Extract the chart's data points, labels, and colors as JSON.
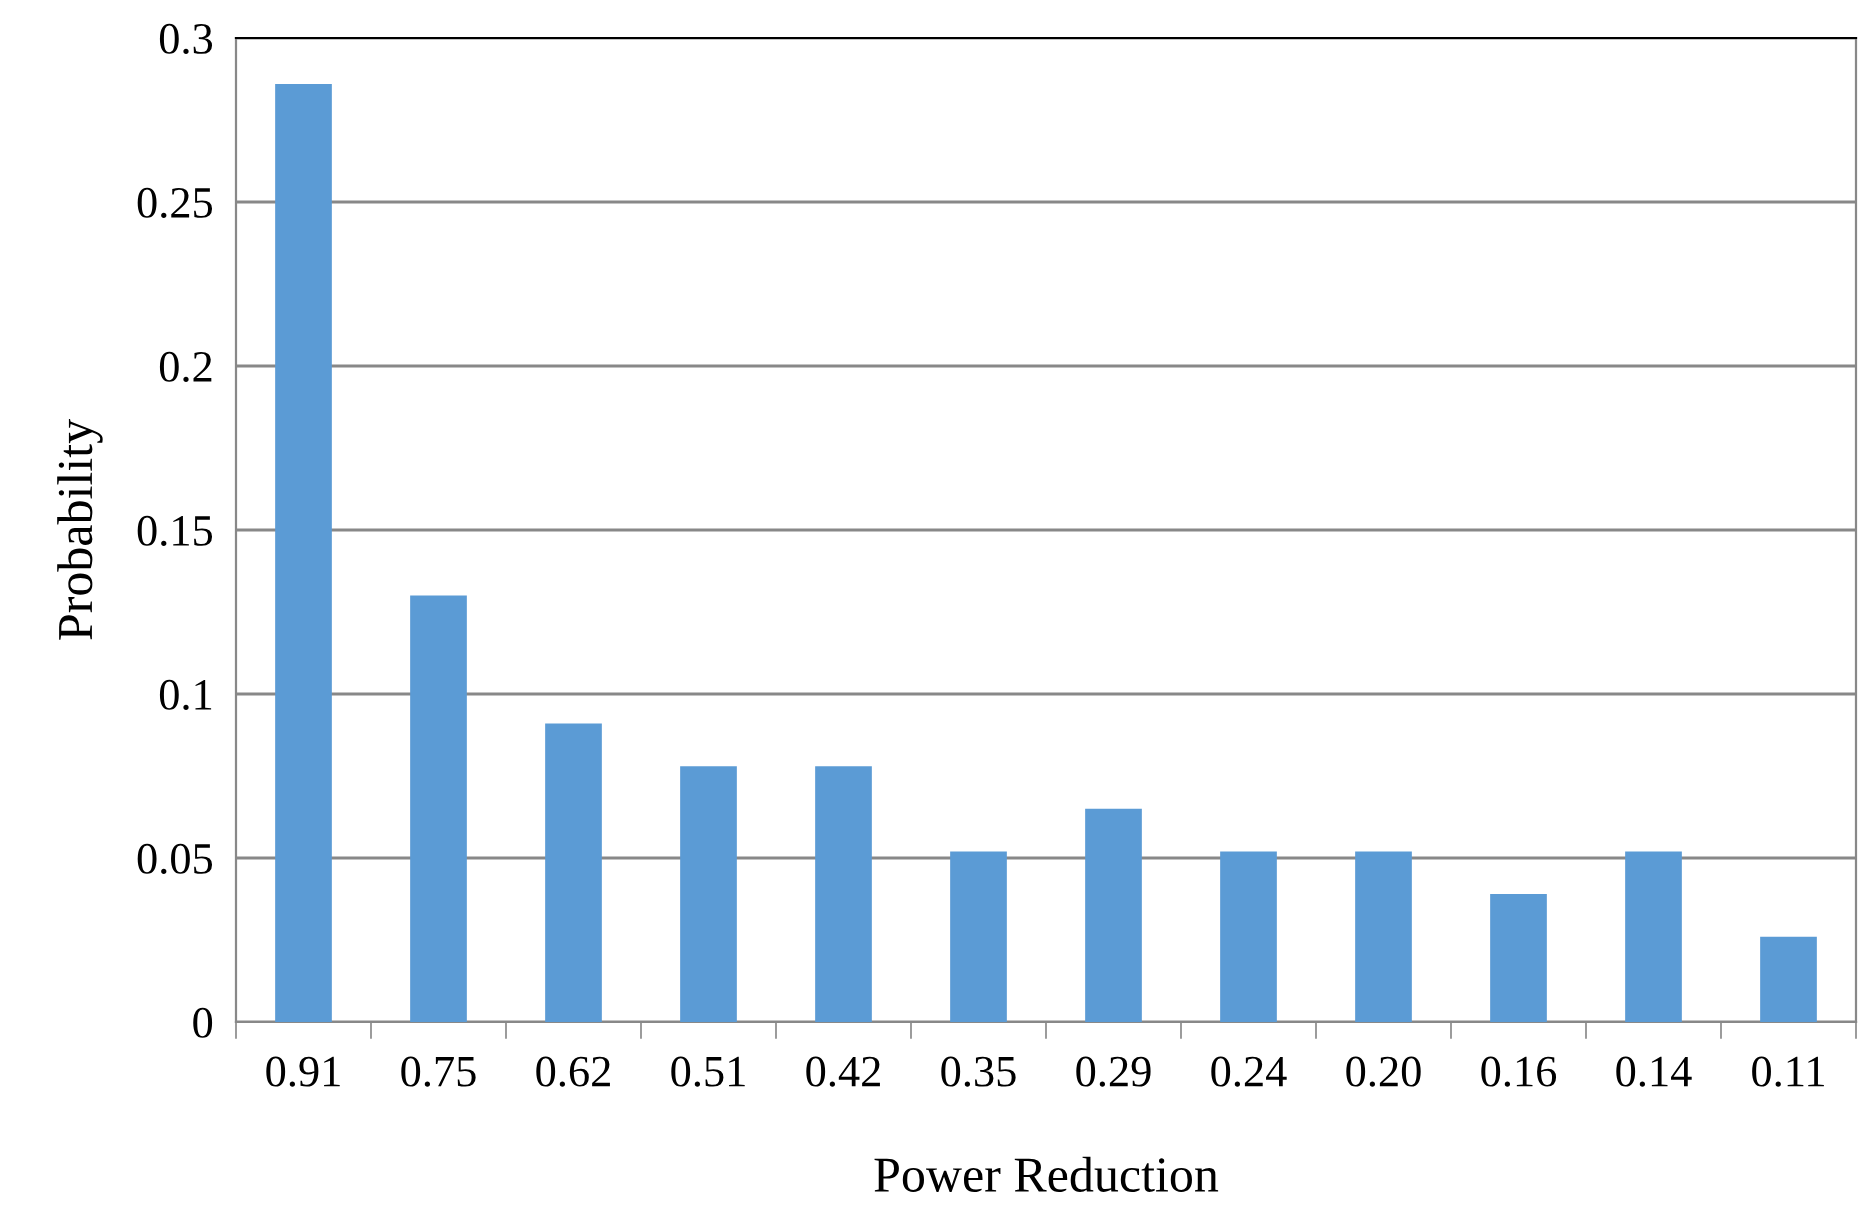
{
  "chart_data": {
    "type": "bar",
    "xlabel": "Power Reduction",
    "ylabel": "Probability",
    "categories": [
      "0.91",
      "0.75",
      "0.62",
      "0.51",
      "0.42",
      "0.35",
      "0.29",
      "0.24",
      "0.20",
      "0.16",
      "0.14",
      "0.11"
    ],
    "values": [
      0.286,
      0.13,
      0.091,
      0.078,
      0.078,
      0.052,
      0.065,
      0.052,
      0.052,
      0.039,
      0.052,
      0.026
    ],
    "color": "#5b9bd5",
    "ylim": [
      0,
      0.3
    ],
    "yticks": [
      0,
      0.05,
      0.1,
      0.15,
      0.2,
      0.25,
      0.3
    ],
    "grid": "y",
    "legend": false
  }
}
